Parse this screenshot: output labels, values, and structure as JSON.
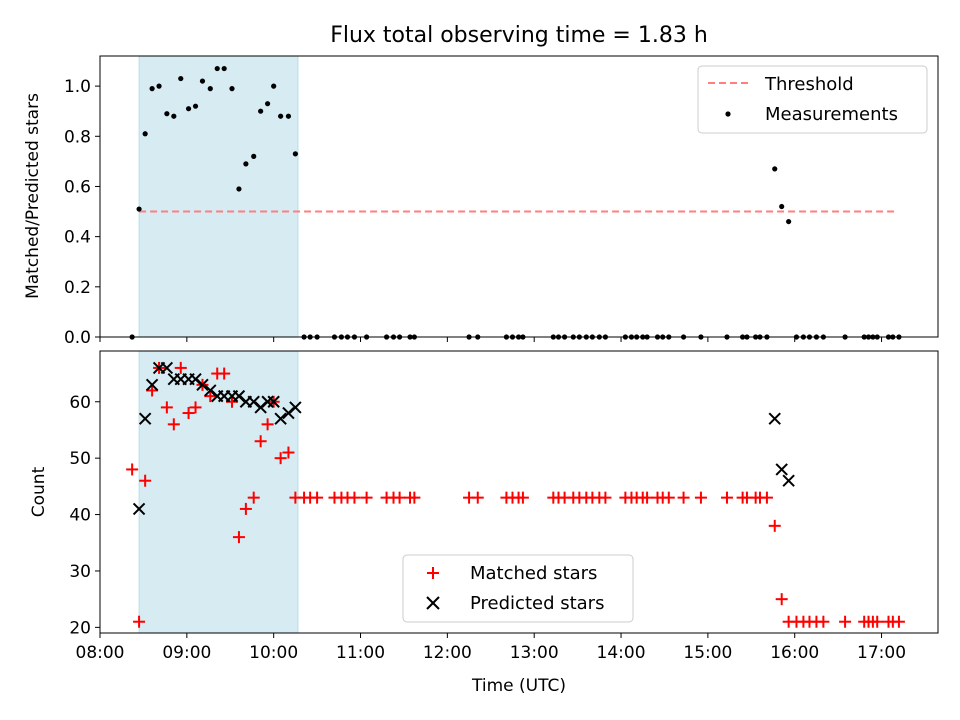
{
  "title": "Flux total observing time = 1.83 h",
  "colors": {
    "highlight": "#add8e6",
    "threshold": "#ff7f7f",
    "measurements": "#000000",
    "matched": "#ff0000",
    "predicted": "#000000"
  },
  "chart_data": [
    {
      "type": "scatter",
      "ylabel": "Matched/Predicted stars",
      "xlim": [
        8.0,
        17.65
      ],
      "ylim": [
        0,
        1.12
      ],
      "yticks": [
        0.0,
        0.2,
        0.4,
        0.6,
        0.8,
        1.0
      ],
      "ytick_labels": [
        "0.0",
        "0.2",
        "0.4",
        "0.6",
        "0.8",
        "1.0"
      ],
      "highlight_span": [
        8.45,
        10.28
      ],
      "threshold": {
        "name": "Threshold",
        "x": [
          8.45,
          17.15
        ],
        "y": 0.5
      },
      "legend": {
        "position": "top-right",
        "entries": [
          "Threshold",
          "Measurements"
        ]
      },
      "series": [
        {
          "name": "Measurements",
          "x": [
            8.37,
            8.45,
            8.52,
            8.6,
            8.68,
            8.77,
            8.85,
            8.93,
            9.02,
            9.1,
            9.18,
            9.27,
            9.35,
            9.43,
            9.52,
            9.6,
            9.68,
            9.77,
            9.85,
            9.93,
            10.0,
            10.08,
            10.17,
            10.25,
            10.35,
            10.42,
            10.5,
            10.7,
            10.78,
            10.85,
            10.93,
            11.07,
            11.3,
            11.38,
            11.45,
            11.57,
            11.62,
            12.25,
            12.35,
            12.68,
            12.75,
            12.82,
            12.87,
            13.22,
            13.28,
            13.35,
            13.45,
            13.52,
            13.6,
            13.67,
            13.75,
            13.82,
            14.05,
            14.12,
            14.18,
            14.25,
            14.3,
            14.42,
            14.48,
            14.55,
            14.72,
            14.92,
            15.22,
            15.4,
            15.45,
            15.55,
            15.6,
            15.68,
            15.77,
            15.85,
            15.93,
            16.02,
            16.1,
            16.17,
            16.25,
            16.33,
            16.58,
            16.8,
            16.85,
            16.9,
            16.95,
            17.08,
            17.13,
            17.2
          ],
          "y": [
            0.0,
            0.51,
            0.81,
            0.99,
            1.0,
            0.89,
            0.88,
            1.03,
            0.91,
            0.92,
            1.02,
            0.99,
            1.07,
            1.07,
            0.99,
            0.59,
            0.69,
            0.72,
            0.9,
            0.93,
            1.0,
            0.88,
            0.88,
            0.73,
            0.0,
            0.0,
            0.0,
            0.0,
            0.0,
            0.0,
            0.0,
            0.0,
            0.0,
            0.0,
            0.0,
            0.0,
            0.0,
            0.0,
            0.0,
            0.0,
            0.0,
            0.0,
            0.0,
            0.0,
            0.0,
            0.0,
            0.0,
            0.0,
            0.0,
            0.0,
            0.0,
            0.0,
            0.0,
            0.0,
            0.0,
            0.0,
            0.0,
            0.0,
            0.0,
            0.0,
            0.0,
            0.0,
            0.0,
            0.0,
            0.0,
            0.0,
            0.0,
            0.0,
            0.67,
            0.52,
            0.46,
            0.0,
            0.0,
            0.0,
            0.0,
            0.0,
            0.0,
            0.0,
            0.0,
            0.0,
            0.0,
            0.0,
            0.0,
            0.0
          ]
        }
      ]
    },
    {
      "type": "scatter",
      "xlabel": "Time (UTC)",
      "ylabel": "Count",
      "xlim": [
        8.0,
        17.65
      ],
      "ylim": [
        19,
        69
      ],
      "xticks": [
        8,
        9,
        10,
        11,
        12,
        13,
        14,
        15,
        16,
        17
      ],
      "xtick_labels": [
        "08:00",
        "09:00",
        "10:00",
        "11:00",
        "12:00",
        "13:00",
        "14:00",
        "15:00",
        "16:00",
        "17:00"
      ],
      "yticks": [
        20,
        30,
        40,
        50,
        60
      ],
      "ytick_labels": [
        "20",
        "30",
        "40",
        "50",
        "60"
      ],
      "highlight_span": [
        8.45,
        10.28
      ],
      "legend": {
        "position": "lower-center",
        "entries": [
          "Matched stars",
          "Predicted stars"
        ]
      },
      "series": [
        {
          "name": "Matched stars",
          "marker": "+",
          "x": [
            8.37,
            8.45,
            8.52,
            8.6,
            8.68,
            8.77,
            8.85,
            8.93,
            9.02,
            9.1,
            9.18,
            9.27,
            9.35,
            9.43,
            9.52,
            9.6,
            9.68,
            9.77,
            9.85,
            9.93,
            10.0,
            10.08,
            10.17,
            10.25,
            10.35,
            10.42,
            10.5,
            10.7,
            10.78,
            10.85,
            10.93,
            11.07,
            11.3,
            11.38,
            11.45,
            11.57,
            11.62,
            12.25,
            12.35,
            12.68,
            12.75,
            12.82,
            12.87,
            13.22,
            13.28,
            13.35,
            13.45,
            13.52,
            13.6,
            13.67,
            13.75,
            13.82,
            14.05,
            14.12,
            14.18,
            14.25,
            14.3,
            14.42,
            14.48,
            14.55,
            14.72,
            14.92,
            15.22,
            15.4,
            15.45,
            15.55,
            15.6,
            15.68,
            15.77,
            15.85,
            15.93,
            16.02,
            16.1,
            16.17,
            16.25,
            16.33,
            16.58,
            16.8,
            16.85,
            16.9,
            16.95,
            17.08,
            17.13,
            17.2
          ],
          "y": [
            48,
            21,
            46,
            62,
            66,
            59,
            56,
            66,
            58,
            59,
            63,
            61,
            65,
            65,
            60,
            36,
            41,
            43,
            53,
            56,
            60,
            50,
            51,
            43,
            43,
            43,
            43,
            43,
            43,
            43,
            43,
            43,
            43,
            43,
            43,
            43,
            43,
            43,
            43,
            43,
            43,
            43,
            43,
            43,
            43,
            43,
            43,
            43,
            43,
            43,
            43,
            43,
            43,
            43,
            43,
            43,
            43,
            43,
            43,
            43,
            43,
            43,
            43,
            43,
            43,
            43,
            43,
            43,
            38,
            25,
            21,
            21,
            21,
            21,
            21,
            21,
            21,
            21,
            21,
            21,
            21,
            21,
            21,
            21
          ]
        },
        {
          "name": "Predicted stars",
          "marker": "x",
          "x": [
            8.45,
            8.52,
            8.6,
            8.68,
            8.77,
            8.85,
            8.93,
            9.02,
            9.1,
            9.18,
            9.27,
            9.35,
            9.43,
            9.52,
            9.6,
            9.68,
            9.77,
            9.85,
            9.93,
            10.0,
            10.08,
            10.17,
            10.25,
            15.77,
            15.85,
            15.93
          ],
          "y": [
            41,
            57,
            63,
            66,
            66,
            64,
            64,
            64,
            64,
            63,
            62,
            61,
            61,
            61,
            61,
            60,
            60,
            59,
            60,
            60,
            57,
            58,
            59,
            57,
            48,
            46
          ]
        }
      ]
    }
  ]
}
